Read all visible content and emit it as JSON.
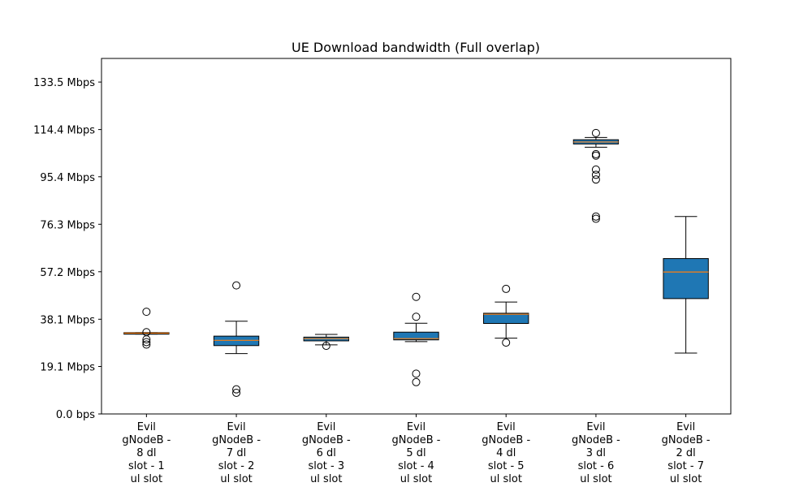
{
  "chart_data": {
    "type": "box",
    "title": "UE Download bandwidth (Full overlap)",
    "xlabel": "",
    "ylabel": "",
    "ylim": [
      0,
      143
    ],
    "y_ticks": [
      {
        "value": 0,
        "label": "0.0 bps"
      },
      {
        "value": 19.1,
        "label": "19.1 Mbps"
      },
      {
        "value": 38.1,
        "label": "38.1 Mbps"
      },
      {
        "value": 57.2,
        "label": "57.2 Mbps"
      },
      {
        "value": 76.3,
        "label": "76.3 Mbps"
      },
      {
        "value": 95.4,
        "label": "95.4 Mbps"
      },
      {
        "value": 114.4,
        "label": "114.4 Mbps"
      },
      {
        "value": 133.5,
        "label": "133.5 Mbps"
      }
    ],
    "categories": [
      [
        "Evil",
        "gNodeB -",
        "8 dl",
        "slot - 1",
        "ul slot"
      ],
      [
        "Evil",
        "gNodeB -",
        "7 dl",
        "slot - 2",
        "ul slot"
      ],
      [
        "Evil",
        "gNodeB -",
        "6 dl",
        "slot - 3",
        "ul slot"
      ],
      [
        "Evil",
        "gNodeB -",
        "5 dl",
        "slot - 4",
        "ul slot"
      ],
      [
        "Evil",
        "gNodeB -",
        "4 dl",
        "slot - 5",
        "ul slot"
      ],
      [
        "Evil",
        "gNodeB -",
        "3 dl",
        "slot - 6",
        "ul slot"
      ],
      [
        "Evil",
        "gNodeB -",
        "2 dl",
        "slot - 7",
        "ul slot"
      ]
    ],
    "boxes": [
      {
        "whisker_low": 32.1,
        "q1": 32.1,
        "median": 32.5,
        "q3": 32.7,
        "whisker_high": 32.7,
        "outliers": [
          41.1,
          32.9,
          30.0,
          28.9,
          27.9
        ]
      },
      {
        "whisker_low": 24.3,
        "q1": 27.5,
        "median": 29.6,
        "q3": 31.3,
        "whisker_high": 37.3,
        "outliers": [
          51.7,
          9.9,
          8.5
        ]
      },
      {
        "whisker_low": 27.8,
        "q1": 29.4,
        "median": 30.3,
        "q3": 30.9,
        "whisker_high": 32.0,
        "outliers": [
          27.4
        ]
      },
      {
        "whisker_low": 29.1,
        "q1": 29.8,
        "median": 30.3,
        "q3": 32.9,
        "whisker_high": 36.5,
        "outliers": [
          47.1,
          39.1,
          16.2,
          12.8
        ]
      },
      {
        "whisker_low": 30.5,
        "q1": 36.4,
        "median": 40.1,
        "q3": 40.5,
        "whisker_high": 45.0,
        "outliers": [
          50.3,
          28.7
        ]
      },
      {
        "whisker_low": 107.3,
        "q1": 108.6,
        "median": 109.4,
        "q3": 110.3,
        "whisker_high": 111.2,
        "outliers": [
          113.0,
          104.5,
          103.9,
          98.3,
          96.2,
          94.3,
          79.4,
          78.5
        ]
      },
      {
        "whisker_low": 24.5,
        "q1": 46.4,
        "median": 57.1,
        "q3": 62.5,
        "whisker_high": 79.4,
        "outliers": []
      }
    ],
    "colors": {
      "box_fill": "#1f77b4",
      "median": "#ff7f0e",
      "line": "#000000",
      "background": "#ffffff"
    },
    "grid": false,
    "legend": "none"
  }
}
